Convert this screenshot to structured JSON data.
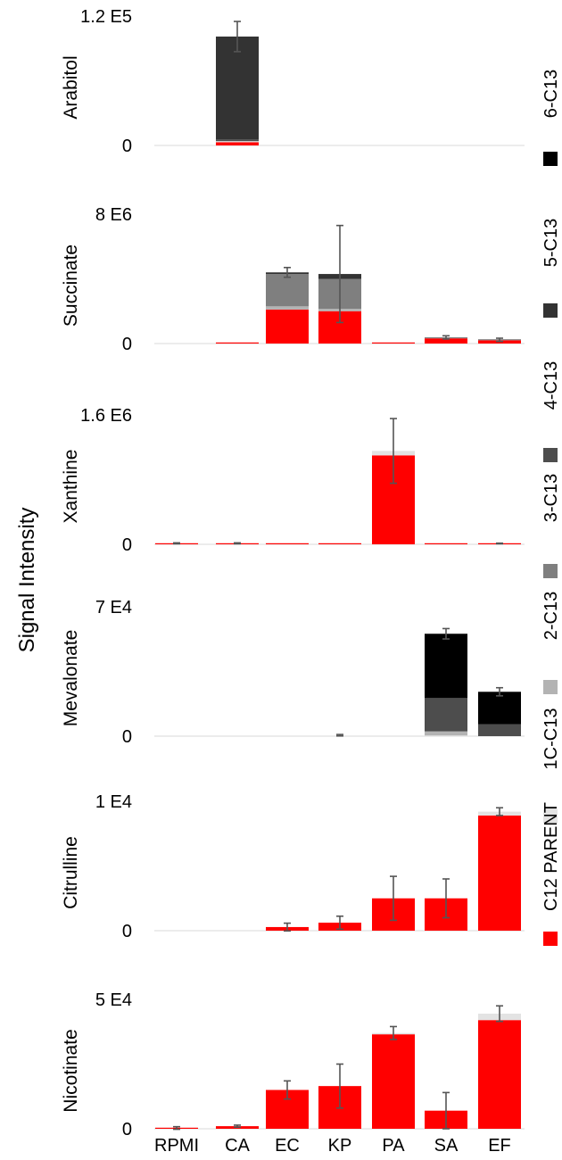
{
  "chart_data": {
    "type": "bar",
    "stacked": true,
    "ylabel": "Signal Intensity",
    "categories": [
      "RPMI",
      "CA",
      "EC",
      "KP",
      "PA",
      "SA",
      "EF"
    ],
    "legend": {
      "placement": "right",
      "items": [
        {
          "name": "6-C13",
          "color": "#000000"
        },
        {
          "name": "5-C13",
          "color": "#333333"
        },
        {
          "name": "4-C13",
          "color": "#4d4d4d"
        },
        {
          "name": "3-C13",
          "color": "#7f7f7f"
        },
        {
          "name": "2-C13",
          "color": "#b3b3b3"
        },
        {
          "name": "1C-C13",
          "color": "#e3e3e3"
        },
        {
          "name": "C12 PARENT",
          "color": "#ff0000"
        }
      ]
    },
    "panels": [
      {
        "name": "Arabitol",
        "ymax_label": "1.2 E5",
        "ymin_label": "0",
        "ymax": 120000,
        "stacks": [
          [],
          [
            {
              "series": "C12 PARENT",
              "value": 3000
            },
            {
              "series": "1C-C13",
              "value": 1000
            },
            {
              "series": "4-C13",
              "value": 1500
            },
            {
              "series": "5-C13",
              "value": 95500
            }
          ],
          [],
          [],
          [],
          [],
          []
        ],
        "errors": [
          null,
          {
            "total": 101000,
            "err": 14000
          },
          null,
          null,
          null,
          null,
          null
        ]
      },
      {
        "name": "Succinate",
        "ymax_label": "8 E6",
        "ymin_label": "0",
        "ymax": 8000000,
        "stacks": [
          [],
          [
            {
              "series": "C12 PARENT",
              "value": 25000
            }
          ],
          [
            {
              "series": "C12 PARENT",
              "value": 2100000
            },
            {
              "series": "2-C13",
              "value": 200000
            },
            {
              "series": "3-C13",
              "value": 2000000
            },
            {
              "series": "5-C13",
              "value": 100000
            }
          ],
          [
            {
              "series": "C12 PARENT",
              "value": 2000000
            },
            {
              "series": "2-C13",
              "value": 150000
            },
            {
              "series": "3-C13",
              "value": 1850000
            },
            {
              "series": "5-C13",
              "value": 300000
            }
          ],
          [
            {
              "series": "C12 PARENT",
              "value": 25000
            }
          ],
          [
            {
              "series": "C12 PARENT",
              "value": 320000
            },
            {
              "series": "3-C13",
              "value": 60000
            }
          ],
          [
            {
              "series": "C12 PARENT",
              "value": 200000
            },
            {
              "series": "3-C13",
              "value": 30000
            }
          ]
        ],
        "errors": [
          null,
          null,
          {
            "total": 4400000,
            "err": 300000
          },
          {
            "total": 4300000,
            "err": 3000000
          },
          null,
          {
            "total": 380000,
            "err": 100000
          },
          {
            "total": 230000,
            "err": 100000
          }
        ]
      },
      {
        "name": "Xanthine",
        "ymax_label": "1.6 E6",
        "ymin_label": "0",
        "ymax": 1600000,
        "stacks": [
          [
            {
              "series": "C12 PARENT",
              "value": 12000
            }
          ],
          [
            {
              "series": "C12 PARENT",
              "value": 12000
            }
          ],
          [
            {
              "series": "C12 PARENT",
              "value": 10000
            }
          ],
          [
            {
              "series": "C12 PARENT",
              "value": 10000
            }
          ],
          [
            {
              "series": "C12 PARENT",
              "value": 1100000
            },
            {
              "series": "1C-C13",
              "value": 55000
            }
          ],
          [
            {
              "series": "C12 PARENT",
              "value": 10000
            }
          ],
          [
            {
              "series": "C12 PARENT",
              "value": 10000
            }
          ]
        ],
        "errors": [
          {
            "total": 12000,
            "err": 6000
          },
          {
            "total": 12000,
            "err": 6000
          },
          null,
          null,
          {
            "total": 1155000,
            "err": 400000
          },
          null,
          {
            "total": 10000,
            "err": 4000
          }
        ]
      },
      {
        "name": "Mevalonate",
        "ymax_label": "7 E4",
        "ymin_label": "0",
        "ymax": 70000,
        "stacks": [
          [],
          [],
          [],
          [],
          [],
          [
            {
              "series": "1C-C13",
              "value": 400
            },
            {
              "series": "2-C13",
              "value": 2200
            },
            {
              "series": "4-C13",
              "value": 18000
            },
            {
              "series": "6-C13",
              "value": 34800
            }
          ],
          [
            {
              "series": "4-C13",
              "value": 6500
            },
            {
              "series": "6-C13",
              "value": 17500
            }
          ]
        ],
        "errors": [
          null,
          null,
          null,
          {
            "total": 500,
            "err": 400
          },
          null,
          {
            "total": 55400,
            "err": 2800
          },
          {
            "total": 24000,
            "err": 2200
          }
        ]
      },
      {
        "name": "Citrulline",
        "ymax_label": "1 E4",
        "ymin_label": "0",
        "ymax": 10000,
        "stacks": [
          [],
          [],
          [
            {
              "series": "C12 PARENT",
              "value": 280
            }
          ],
          [
            {
              "series": "C12 PARENT",
              "value": 620
            }
          ],
          [
            {
              "series": "C12 PARENT",
              "value": 2500
            }
          ],
          [
            {
              "series": "C12 PARENT",
              "value": 2500
            }
          ],
          [
            {
              "series": "C12 PARENT",
              "value": 8900
            },
            {
              "series": "1C-C13",
              "value": 300
            }
          ]
        ],
        "errors": [
          null,
          null,
          {
            "total": 280,
            "err": 300
          },
          {
            "total": 620,
            "err": 500
          },
          {
            "total": 2500,
            "err": 1700
          },
          {
            "total": 2500,
            "err": 1500
          },
          {
            "total": 9200,
            "err": 300
          }
        ]
      },
      {
        "name": "Nicotinate",
        "ymax_label": "5 E4",
        "ymin_label": "0",
        "ymax": 50000,
        "stacks": [
          [
            {
              "series": "C12 PARENT",
              "value": 300
            }
          ],
          [
            {
              "series": "C12 PARENT",
              "value": 1000
            }
          ],
          [
            {
              "series": "C12 PARENT",
              "value": 15000
            }
          ],
          [
            {
              "series": "C12 PARENT",
              "value": 16500
            }
          ],
          [
            {
              "series": "C12 PARENT",
              "value": 36500
            },
            {
              "series": "1C-C13",
              "value": 500
            }
          ],
          [
            {
              "series": "C12 PARENT",
              "value": 7000
            }
          ],
          [
            {
              "series": "C12 PARENT",
              "value": 42000
            },
            {
              "series": "1C-C13",
              "value": 2500
            }
          ]
        ],
        "errors": [
          {
            "total": 300,
            "err": 500
          },
          {
            "total": 1000,
            "err": 400
          },
          {
            "total": 15000,
            "err": 3500
          },
          {
            "total": 16500,
            "err": 8500
          },
          {
            "total": 37000,
            "err": 2500
          },
          {
            "total": 7000,
            "err": 7000
          },
          {
            "total": 44500,
            "err": 3000
          }
        ]
      }
    ]
  }
}
